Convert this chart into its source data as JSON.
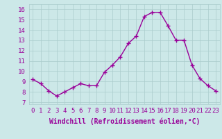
{
  "x": [
    0,
    1,
    2,
    3,
    4,
    5,
    6,
    7,
    8,
    9,
    10,
    11,
    12,
    13,
    14,
    15,
    16,
    17,
    18,
    19,
    20,
    21,
    22,
    23
  ],
  "y": [
    9.2,
    8.8,
    8.1,
    7.6,
    8.0,
    8.4,
    8.8,
    8.6,
    8.6,
    9.9,
    10.6,
    11.4,
    12.7,
    13.4,
    15.3,
    15.7,
    15.7,
    14.4,
    13.0,
    13.0,
    10.6,
    9.3,
    8.6,
    8.1
  ],
  "line_color": "#990099",
  "marker": "+",
  "marker_size": 4,
  "marker_lw": 1.0,
  "bg_color": "#cce8e8",
  "grid_color": "#aacccc",
  "xlabel": "Windchill (Refroidissement éolien,°C)",
  "xlim": [
    -0.5,
    23.5
  ],
  "ylim": [
    6.8,
    16.5
  ],
  "xtick_labels": [
    "0",
    "1",
    "2",
    "3",
    "4",
    "5",
    "6",
    "7",
    "8",
    "9",
    "10",
    "11",
    "12",
    "13",
    "14",
    "15",
    "16",
    "17",
    "18",
    "19",
    "20",
    "21",
    "22",
    "23"
  ],
  "ytick_vals": [
    7,
    8,
    9,
    10,
    11,
    12,
    13,
    14,
    15,
    16
  ],
  "axis_label_color": "#990099",
  "tick_color": "#990099",
  "font_size_xlabel": 7.0,
  "font_size_ticks": 6.5,
  "line_width": 1.0
}
